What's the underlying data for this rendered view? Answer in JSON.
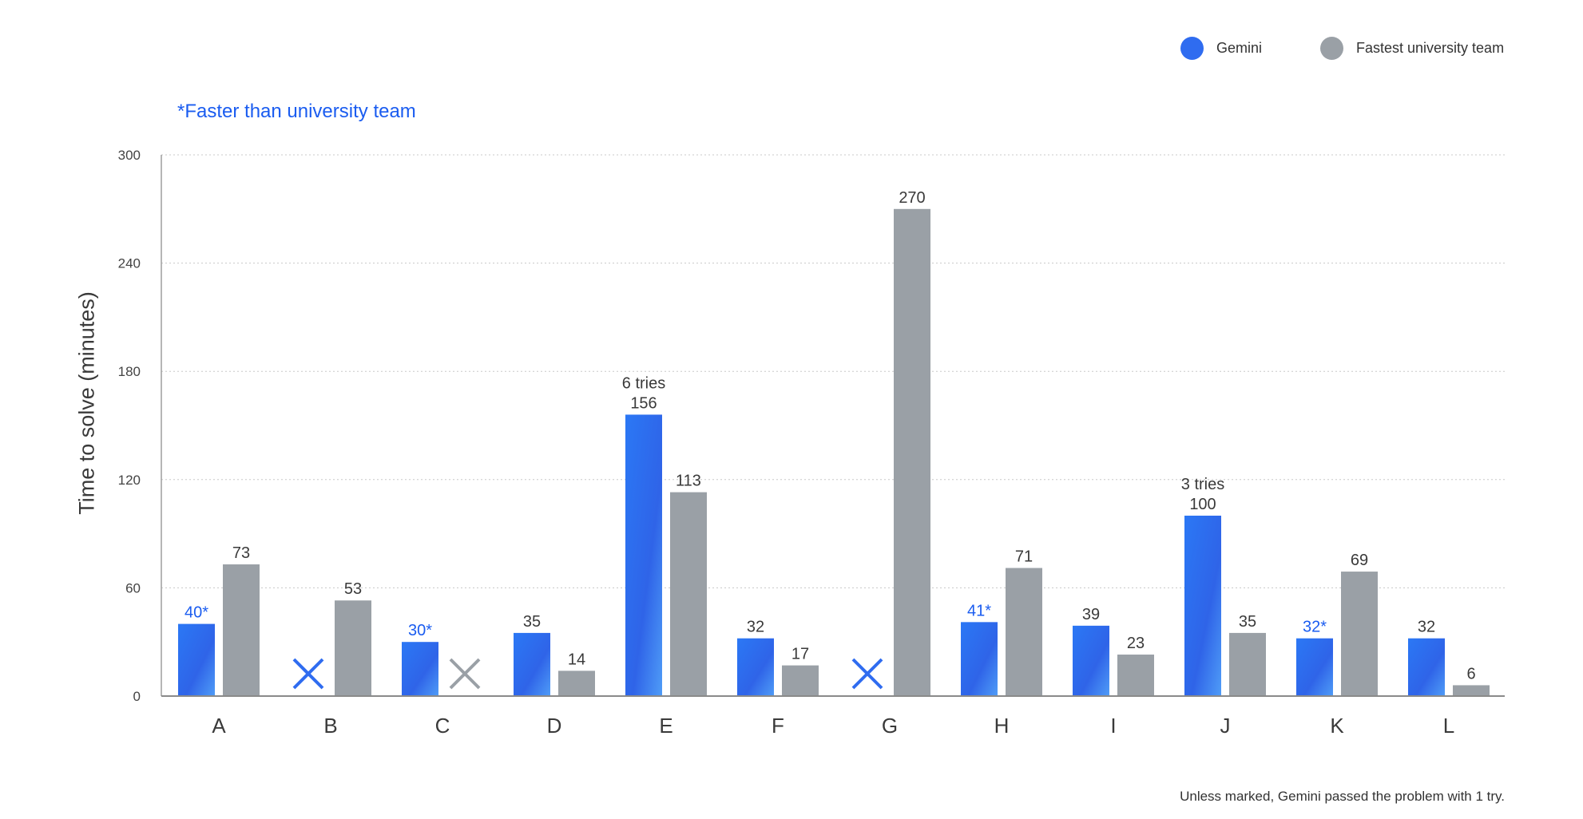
{
  "legend": [
    {
      "name": "Gemini",
      "color": "#2f6cf0"
    },
    {
      "name": "Fastest university team",
      "color": "#9aa0a6"
    }
  ],
  "note": "*Faster than university team",
  "footnote": "Unless marked, Gemini passed the problem with 1 try.",
  "chart_data": {
    "type": "bar",
    "ylabel": "Time to solve (minutes)",
    "xlabel": "",
    "ylim": [
      0,
      300
    ],
    "yticks": [
      0,
      60,
      120,
      180,
      240,
      300
    ],
    "grid": true,
    "legend_position": "top-right",
    "categories": [
      "A",
      "B",
      "C",
      "D",
      "E",
      "F",
      "G",
      "H",
      "I",
      "J",
      "K",
      "L"
    ],
    "series": [
      {
        "name": "Gemini",
        "color": "#2f6cf0",
        "values": [
          40,
          null,
          30,
          35,
          156,
          32,
          null,
          41,
          39,
          100,
          32,
          32
        ],
        "labels": [
          "40*",
          "",
          "30*",
          "35",
          "156",
          "32",
          "",
          "41*",
          "39",
          "100",
          "32*",
          "32"
        ],
        "faster": [
          true,
          false,
          true,
          false,
          false,
          false,
          false,
          true,
          false,
          false,
          true,
          false
        ],
        "tries": [
          "",
          "",
          "",
          "",
          "6 tries",
          "",
          "",
          "",
          "",
          "3 tries",
          "",
          ""
        ],
        "unsolved_marker": "×"
      },
      {
        "name": "Fastest university team",
        "color": "#9aa0a6",
        "values": [
          73,
          53,
          null,
          14,
          113,
          17,
          270,
          71,
          23,
          35,
          69,
          6
        ],
        "labels": [
          "73",
          "53",
          "",
          "14",
          "113",
          "17",
          "270",
          "71",
          "23",
          "35",
          "69",
          "6"
        ],
        "unsolved_marker": "×"
      }
    ]
  }
}
